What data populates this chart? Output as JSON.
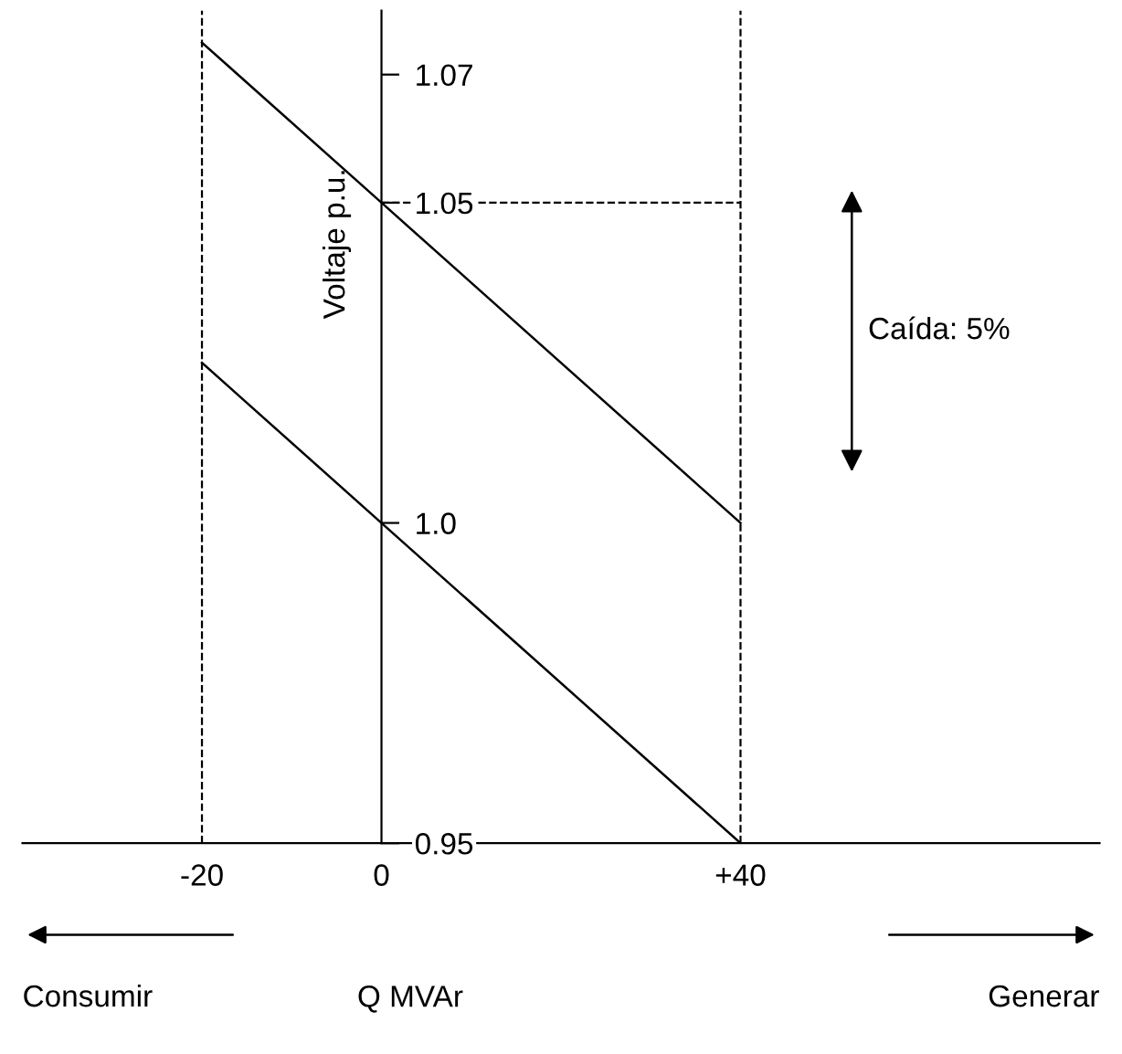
{
  "chart_data": {
    "type": "line",
    "xlabel": "Q MVAr",
    "ylabel": "Voltaje p.u.",
    "x": [
      -20,
      0,
      40
    ],
    "series": [
      {
        "color": "#000000",
        "values": [
          1.075,
          1.05,
          1.0
        ]
      },
      {
        "color": "#000000",
        "values": [
          1.025,
          1.0,
          0.95
        ]
      }
    ],
    "xlim": [
      -40,
      80
    ],
    "ylim": [
      0.95,
      1.08
    ],
    "xticks": [
      -20,
      0,
      {
        "value": 40,
        "label": "+40"
      }
    ],
    "yticks": [
      0.95,
      {
        "value": 1.0,
        "label": "1.0"
      },
      1.05,
      1.07
    ],
    "ref_lines": [
      {
        "axis": "x",
        "value": -20,
        "line_style": "dashed"
      },
      {
        "axis": "x",
        "value": 40,
        "line_style": "dashed"
      },
      {
        "axis": "y",
        "value": 1.05,
        "line_style": "dashed"
      }
    ],
    "annotations": [
      "Caída: 5%",
      "Consumir",
      "Generar"
    ],
    "grid": false,
    "legend": false,
    "marker": "none",
    "line_style": "solid"
  }
}
